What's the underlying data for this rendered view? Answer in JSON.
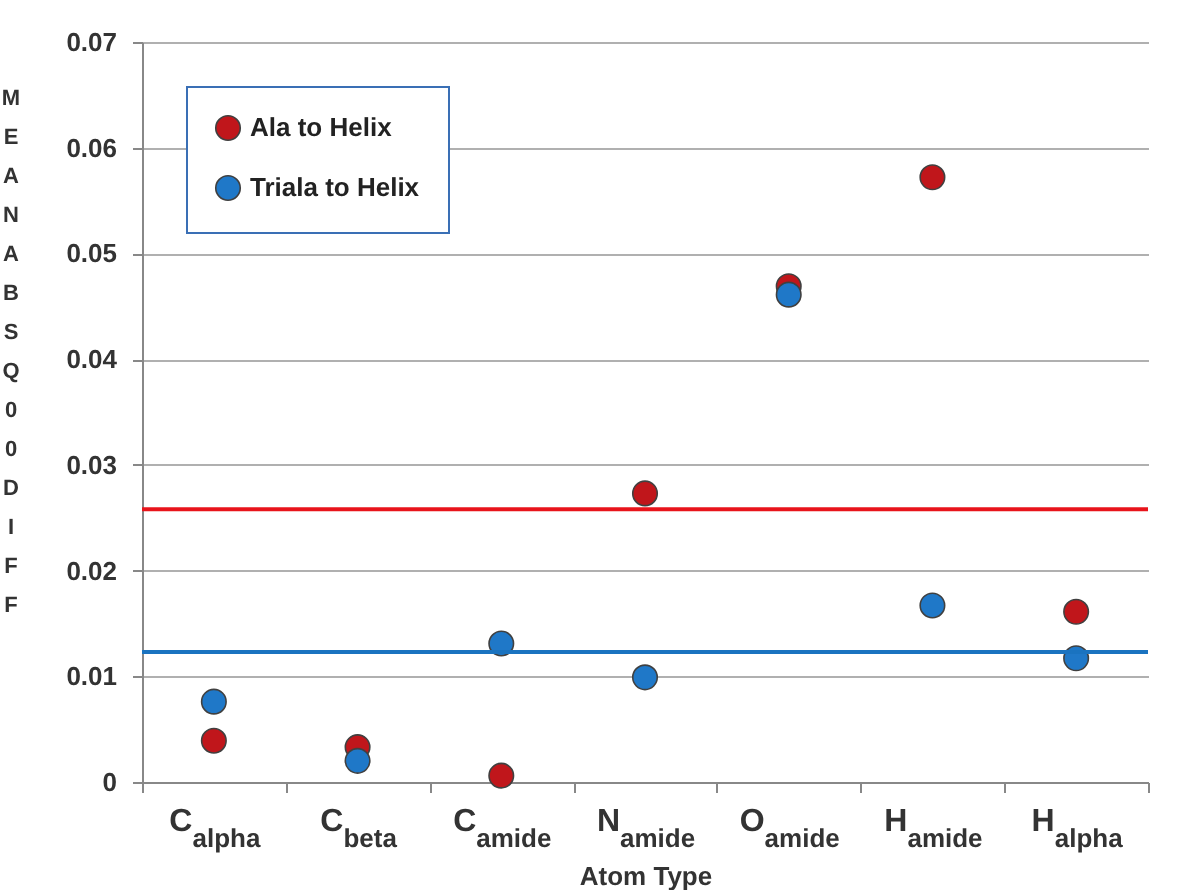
{
  "chart_data": {
    "type": "scatter",
    "xlabel": "Atom Type",
    "ylabel": "MEAN ABS Q00 DIFF",
    "categories": [
      "C$_{alpha}$",
      "C$_{beta}$",
      "C$_{amide}$",
      "N$_{amide}$",
      "O$_{amide}$",
      "H$_{amide}$",
      "H$_{alpha}$"
    ],
    "series": [
      {
        "name": "Ala to Helix",
        "color": "#c0161b",
        "values": [
          0.0039,
          0.0033,
          0.0006,
          0.0273,
          0.0469,
          0.0572,
          0.0161
        ]
      },
      {
        "name": "Triala to Helix",
        "color": "#1f78c8",
        "values": [
          0.0076,
          0.002,
          0.0131,
          0.0099,
          0.0461,
          0.0167,
          0.0117
        ]
      }
    ],
    "ref_lines": [
      {
        "axis": "y",
        "value": 0.0258,
        "color": "#e8141b"
      },
      {
        "axis": "y",
        "value": 0.0123,
        "color": "#1a73c0"
      }
    ],
    "ylim": [
      0,
      0.07
    ],
    "yticks": [
      0,
      0.01,
      0.02,
      0.03,
      0.04,
      0.05,
      0.06,
      0.07
    ],
    "grid": "y",
    "legend": "top left",
    "marker": "circle"
  }
}
